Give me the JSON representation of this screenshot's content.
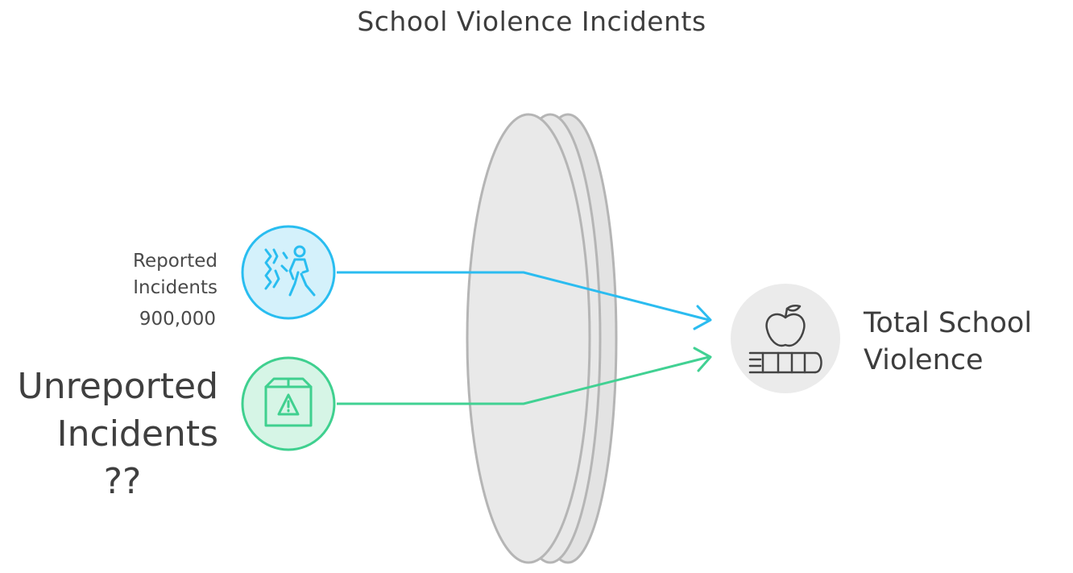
{
  "title": "School Violence Incidents",
  "inputs": [
    {
      "label_line1": "Reported",
      "label_line2": "Incidents",
      "value": "900,000",
      "icon": "violence-figures-icon",
      "color": "#29bdf0",
      "fill": "#d4f1fb"
    },
    {
      "label_line1": "Unreported",
      "label_line2": "Incidents",
      "value": "??",
      "icon": "warning-box-icon",
      "color": "#3fd08f",
      "fill": "#d6f5e6"
    }
  ],
  "output": {
    "label_line1": "Total School",
    "label_line2": "Violence",
    "icon": "apple-on-books-icon",
    "circle_fill": "#ebebeb"
  },
  "lens_color": "#e6e6e6",
  "lens_stroke": "#b5b5b5"
}
